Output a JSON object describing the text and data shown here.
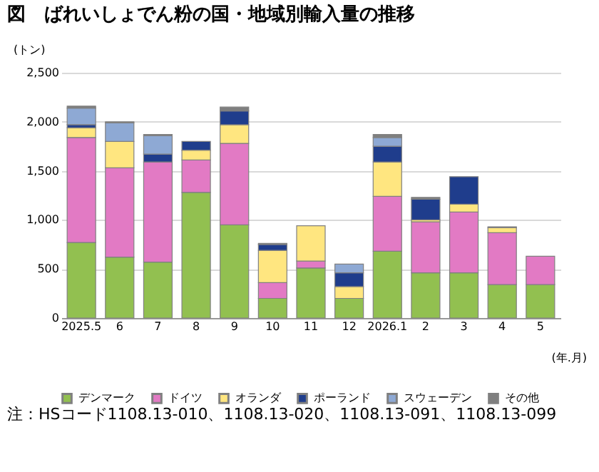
{
  "chart_data": {
    "type": "bar",
    "stacked": true,
    "title": "図　ばれいしょでん粉の国・地域別輸入量の推移",
    "ylabel": "(トン)",
    "xlabel": "(年.月)",
    "categories": [
      "2025.5",
      "6",
      "7",
      "8",
      "9",
      "10",
      "11",
      "12",
      "2026.1",
      "2",
      "3",
      "4",
      "5"
    ],
    "series": [
      {
        "name": "デンマーク",
        "color": "#92c050",
        "values": [
          770,
          620,
          570,
          1280,
          950,
          200,
          510,
          200,
          680,
          460,
          460,
          340,
          340
        ]
      },
      {
        "name": "ドイツ",
        "color": "#e27ac4",
        "values": [
          1070,
          910,
          1020,
          330,
          830,
          160,
          70,
          0,
          560,
          520,
          620,
          530,
          290
        ]
      },
      {
        "name": "オランダ",
        "color": "#ffe680",
        "values": [
          100,
          270,
          0,
          100,
          190,
          330,
          360,
          120,
          350,
          20,
          80,
          50,
          0
        ]
      },
      {
        "name": "ポーランド",
        "color": "#1f3d8c",
        "values": [
          30,
          0,
          80,
          90,
          140,
          60,
          0,
          140,
          160,
          210,
          280,
          10,
          0
        ]
      },
      {
        "name": "スウェーデン",
        "color": "#8ea9d4",
        "values": [
          170,
          190,
          190,
          0,
          0,
          0,
          0,
          90,
          90,
          0,
          0,
          0,
          0
        ]
      },
      {
        "name": "その他",
        "color": "#7f7f7f",
        "values": [
          20,
          10,
          10,
          0,
          40,
          10,
          0,
          0,
          30,
          20,
          0,
          0,
          0
        ]
      }
    ],
    "ylim": [
      0,
      2500
    ],
    "yticks": [
      0,
      500,
      {
        "value": 1000,
        "label": "1,000"
      },
      {
        "value": 1500,
        "label": "1,500"
      },
      {
        "value": 2000,
        "label": "2,000"
      },
      {
        "value": 2500,
        "label": "2,500"
      }
    ],
    "grid": "y",
    "legend": "bottom",
    "annotations": [
      "注：HSコード1108.13-010、1108.13-020、1108.13-091、1108.13-099"
    ]
  }
}
